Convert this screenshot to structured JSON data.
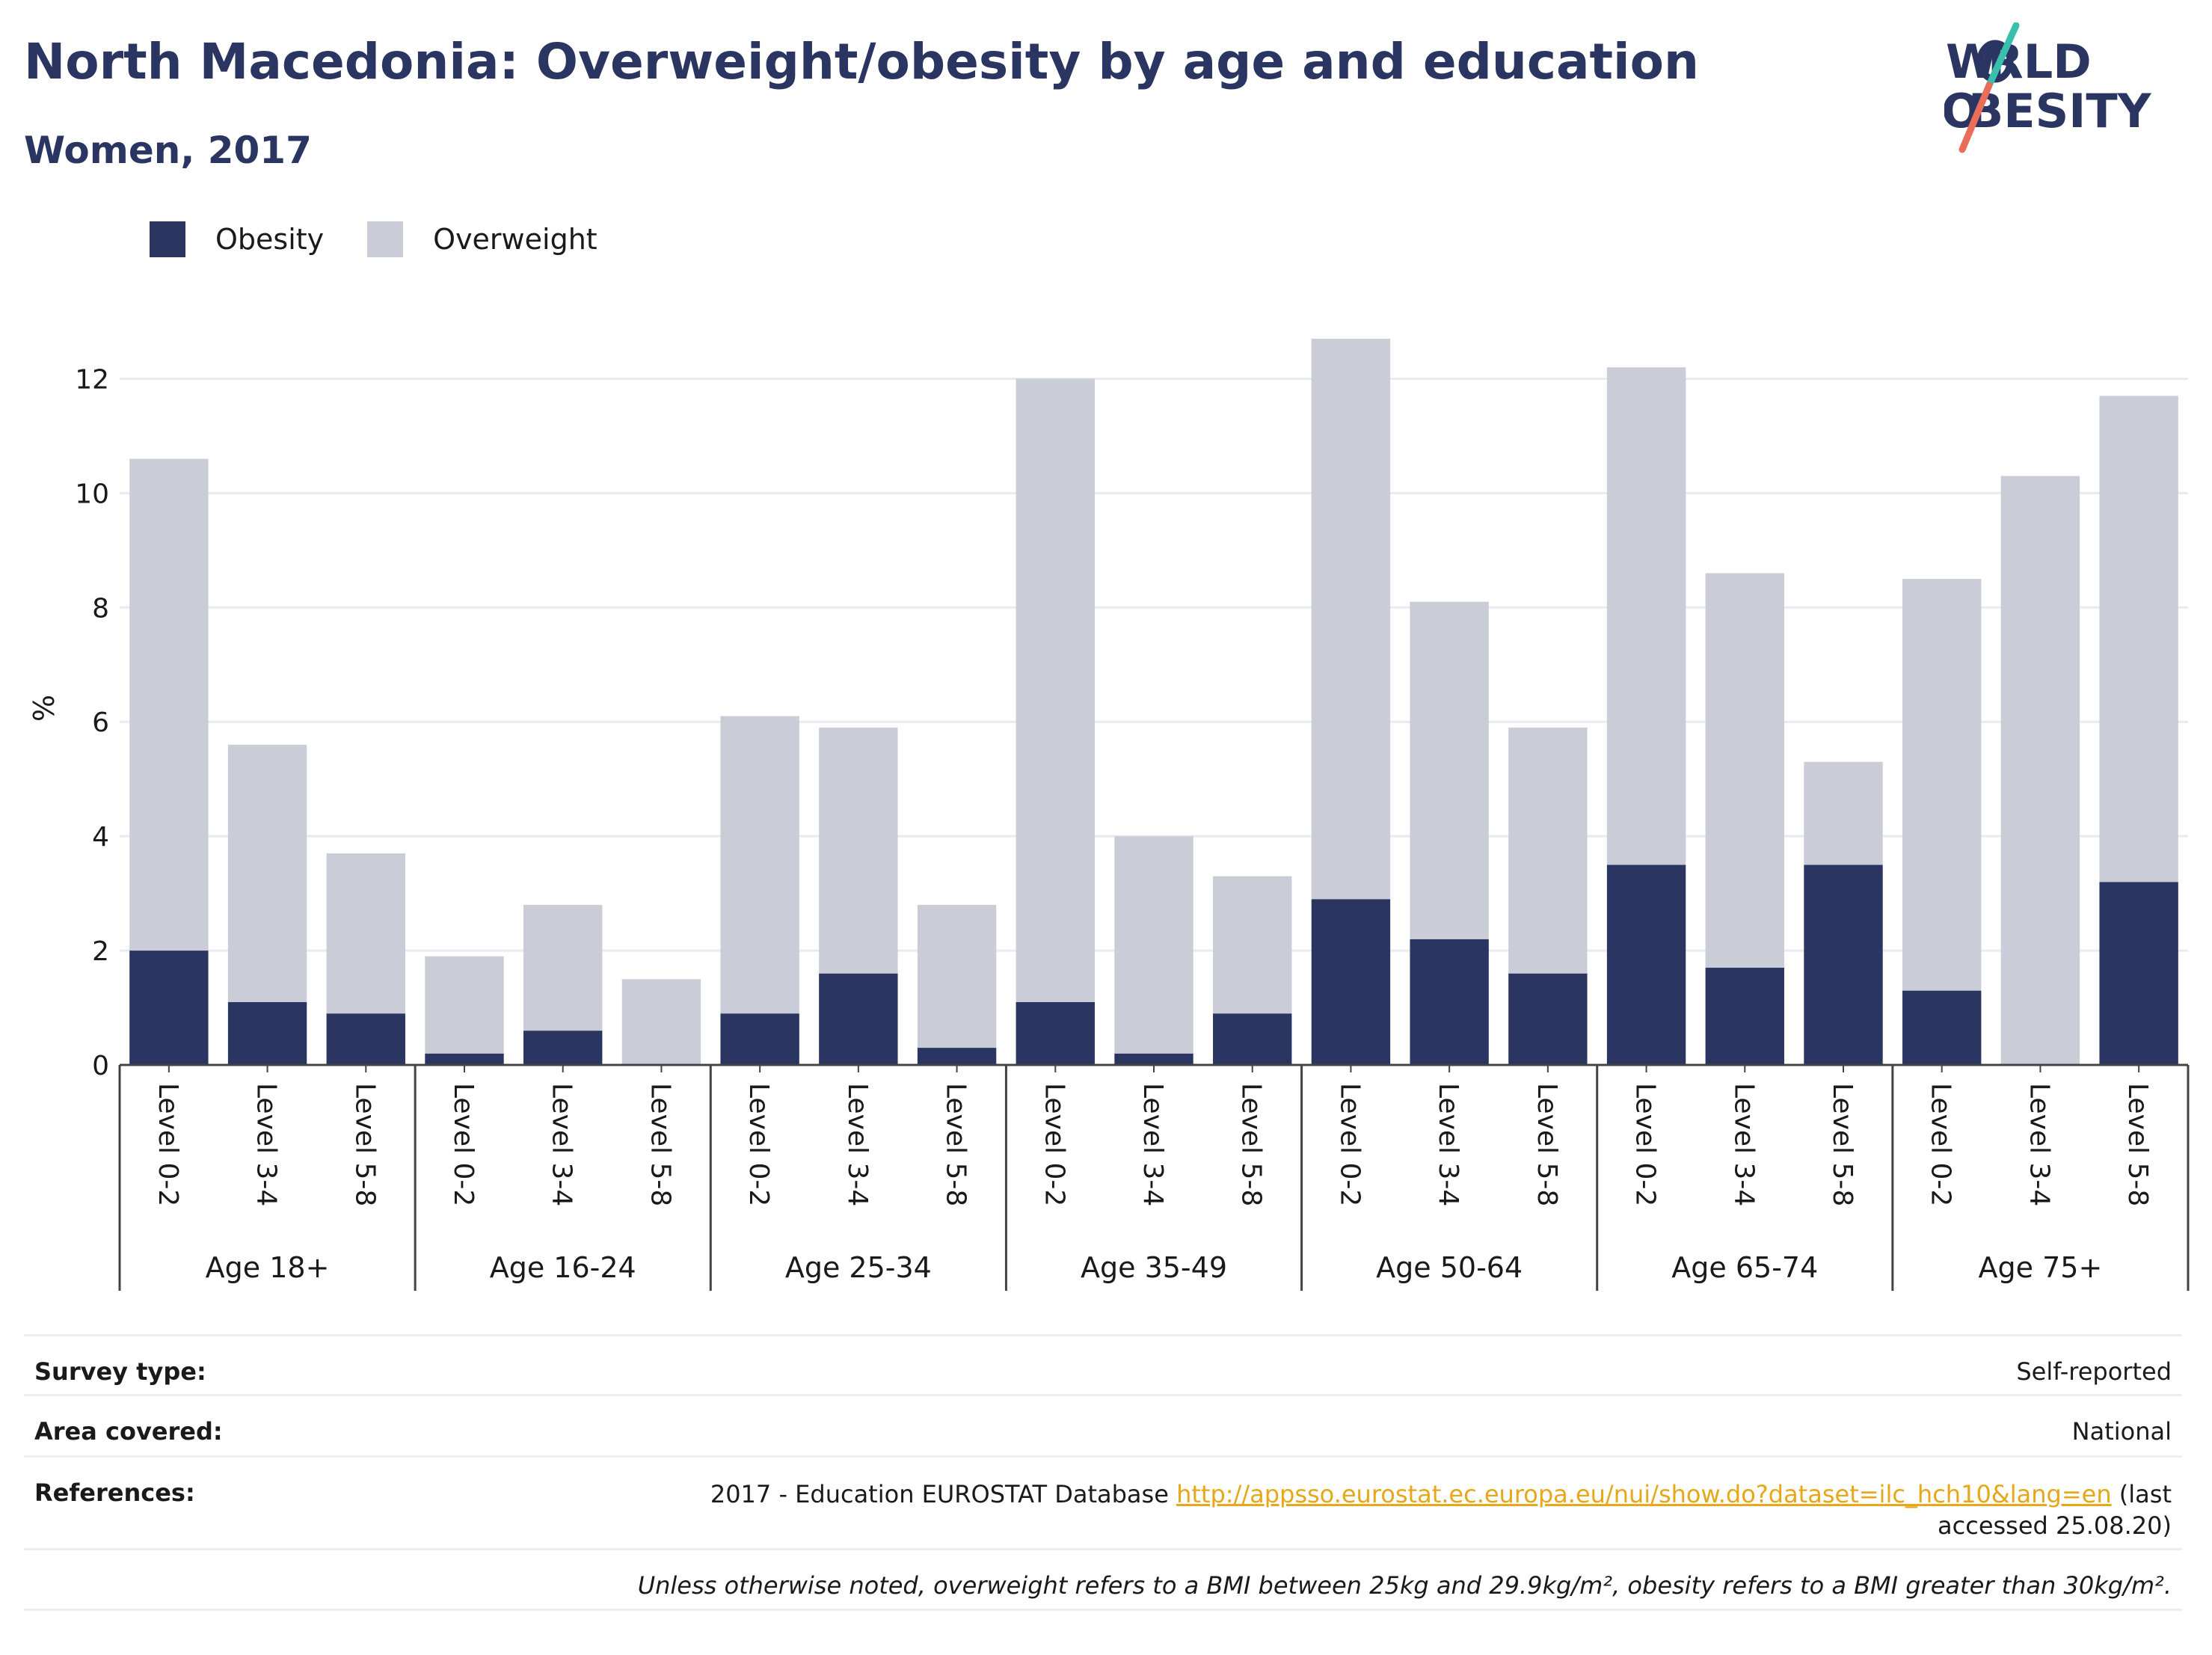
{
  "header": {
    "title": "North Macedonia: Overweight/obesity by age and education",
    "subtitle": "Women, 2017"
  },
  "logo": {
    "line1": "WORLD",
    "line2": "OBESITY",
    "colors": [
      "#2a3561",
      "#3bbfad",
      "#ea6d5a"
    ]
  },
  "legend": [
    {
      "label": "Obesity",
      "color": "#2a3561"
    },
    {
      "label": "Overweight",
      "color": "#cacdd8"
    }
  ],
  "chart_data": {
    "type": "bar",
    "stacked": true,
    "ylabel": "%",
    "ylim": [
      0,
      13
    ],
    "yticks": [
      0,
      2,
      4,
      6,
      8,
      10,
      12
    ],
    "grid": true,
    "legend_position": "top-left",
    "groups": [
      "Age 18+",
      "Age 16-24",
      "Age 25-34",
      "Age 35-49",
      "Age 50-64",
      "Age 65-74",
      "Age 75+"
    ],
    "subcategories": [
      "Level 0-2",
      "Level 3-4",
      "Level 5-8"
    ],
    "series": [
      {
        "name": "Obesity",
        "color": "#2a3561",
        "values": [
          2.0,
          1.1,
          0.9,
          0.2,
          0.6,
          0.0,
          0.9,
          1.6,
          0.3,
          1.1,
          0.2,
          0.9,
          2.9,
          2.2,
          1.6,
          3.5,
          1.7,
          3.5,
          1.3,
          0.0,
          3.2
        ]
      },
      {
        "name": "Overweight",
        "color": "#cacdd8",
        "values": [
          8.6,
          4.5,
          2.8,
          1.7,
          2.2,
          1.5,
          5.2,
          4.3,
          2.5,
          10.9,
          3.8,
          2.4,
          9.8,
          5.9,
          4.3,
          8.7,
          6.9,
          1.8,
          7.2,
          10.3,
          8.5
        ]
      }
    ]
  },
  "info": {
    "survey_label": "Survey type:",
    "survey_value": "Self-reported",
    "area_label": "Area covered:",
    "area_value": "National",
    "references_label": "References:",
    "references_prefix": "2017 - Education EUROSTAT Database ",
    "references_link": "http://appsso.eurostat.ec.europa.eu/nui/show.do?dataset=ilc_hch10&lang=en",
    "references_suffix": " (last accessed 25.08.20)",
    "note": "Unless otherwise noted, overweight refers to a BMI between 25kg and 29.9kg/m², obesity refers to a BMI greater than 30kg/m²."
  }
}
